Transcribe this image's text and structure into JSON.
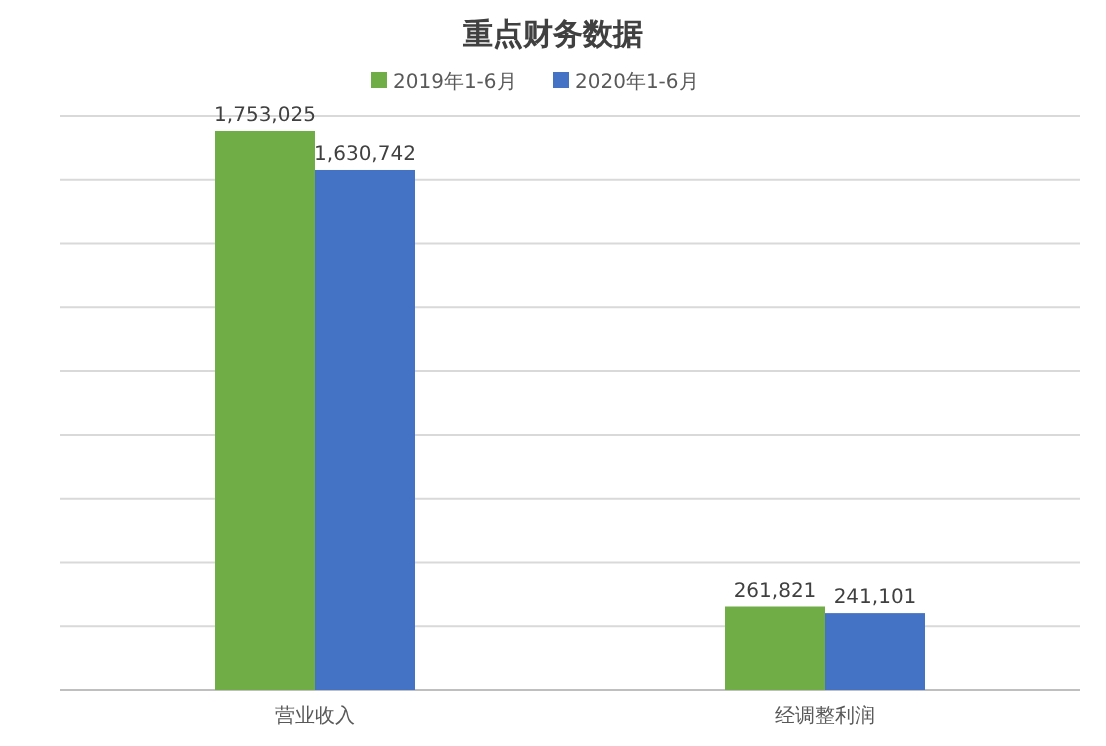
{
  "chart_data": {
    "type": "bar",
    "title": "重点财务数据",
    "categories": [
      "营业收入",
      "经调整利润"
    ],
    "series": [
      {
        "name": "2019年1-6月",
        "color": "#70ad47",
        "values": [
          1753025,
          261821
        ],
        "value_labels": [
          "1,753,025",
          "261,821"
        ]
      },
      {
        "name": "2020年1-6月",
        "color": "#4472c4",
        "values": [
          1630742,
          241101
        ],
        "value_labels": [
          "1,630,742",
          "241,101"
        ]
      }
    ],
    "grid": "y",
    "legend": "top",
    "tick_labels": "x"
  }
}
